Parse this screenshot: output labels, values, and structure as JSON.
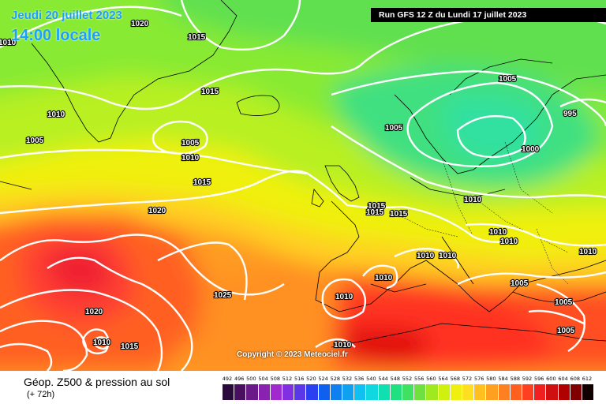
{
  "header": {
    "date_line": "Jeudi 20 juillet 2023",
    "time_line": "14:00 locale",
    "run_banner": "Run GFS 12 Z du Lundi 17 juillet 2023"
  },
  "copyright": "Copyright © 2023 Meteociel.fr",
  "footer": {
    "title": "Géop. Z500 & pression au sol",
    "subtitle": "(+ 72h)"
  },
  "legend": {
    "values": [
      "492",
      "496",
      "500",
      "504",
      "508",
      "512",
      "516",
      "520",
      "524",
      "528",
      "532",
      "536",
      "540",
      "544",
      "548",
      "552",
      "556",
      "560",
      "564",
      "568",
      "572",
      "576",
      "580",
      "584",
      "588",
      "592",
      "596",
      "600",
      "604",
      "608",
      "612"
    ],
    "colors": [
      "#2a0a3a",
      "#4a1060",
      "#6a1a88",
      "#8a22b0",
      "#a02ad0",
      "#8030e0",
      "#5a38e8",
      "#2a40f0",
      "#1060f0",
      "#1080f0",
      "#10a0f0",
      "#10c0f0",
      "#10d8e0",
      "#10e0b0",
      "#20e080",
      "#40e060",
      "#70e040",
      "#a0e820",
      "#d0f010",
      "#f0f010",
      "#ffe020",
      "#ffc020",
      "#ffa020",
      "#ff8020",
      "#ff6020",
      "#ff4020",
      "#f02020",
      "#d01010",
      "#b00000",
      "#800000",
      "#100000"
    ]
  },
  "isobars": [
    {
      "label": "1020"
    },
    {
      "label": "1015"
    },
    {
      "label": "1010"
    },
    {
      "label": "1015"
    },
    {
      "label": "1010"
    },
    {
      "label": "1005"
    },
    {
      "label": "1005"
    },
    {
      "label": "1010"
    },
    {
      "label": "1015"
    },
    {
      "label": "1020"
    },
    {
      "label": "1025"
    },
    {
      "label": "1020"
    },
    {
      "label": "1010"
    },
    {
      "label": "1015"
    },
    {
      "label": "1005"
    },
    {
      "label": "995"
    },
    {
      "label": "1005"
    },
    {
      "label": "1000"
    },
    {
      "label": "1010"
    },
    {
      "label": "1015"
    },
    {
      "label": "1015"
    },
    {
      "label": "1015"
    },
    {
      "label": "1010"
    },
    {
      "label": "1010"
    },
    {
      "label": "1010"
    },
    {
      "label": "1010"
    },
    {
      "label": "1010"
    },
    {
      "label": "1010"
    },
    {
      "label": "1010"
    },
    {
      "label": "1005"
    },
    {
      "label": "1005"
    },
    {
      "label": "1005"
    },
    {
      "label": "1010"
    }
  ]
}
